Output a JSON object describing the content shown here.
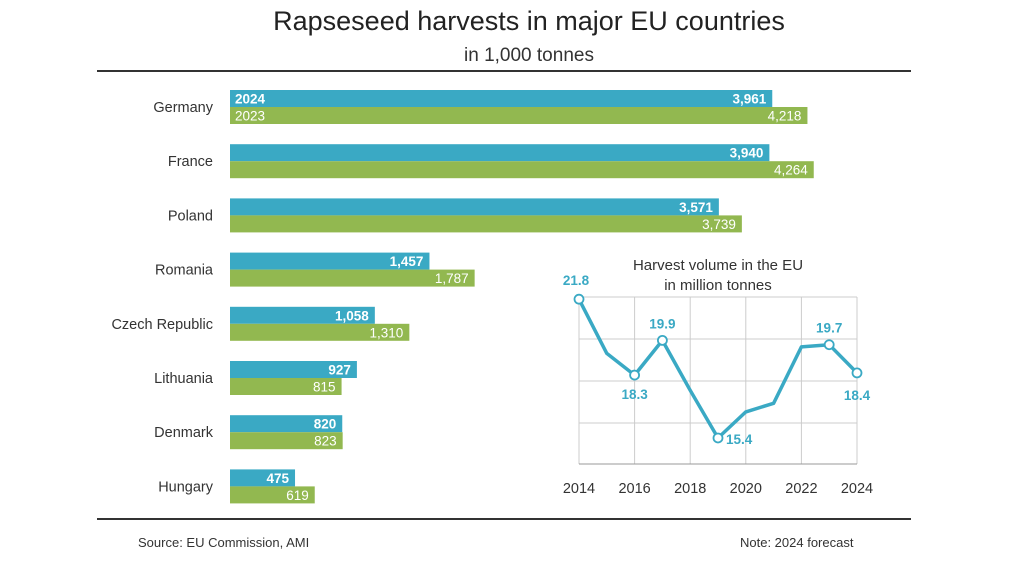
{
  "header": {
    "title": "Rapseseed harvests in major EU countries",
    "subtitle": "in 1,000 tonnes"
  },
  "footer": {
    "source": "Source:  EU Commission, AMI",
    "note": "Note: 2024 forecast"
  },
  "colors": {
    "series_2024": "#3aa9c4",
    "series_2023": "#92b850",
    "line": "#3aa9c4",
    "grid": "#cccccc"
  },
  "chart_data": [
    {
      "type": "bar",
      "orientation": "horizontal",
      "title": "Rapseseed harvests in major EU countries",
      "subtitle": "in 1,000 tonnes",
      "categories": [
        "Germany",
        "France",
        "Poland",
        "Romania",
        "Czech Republic",
        "Lithuania",
        "Denmark",
        "Hungary"
      ],
      "series": [
        {
          "name": "2024",
          "values": [
            3961,
            3940,
            3571,
            1457,
            1058,
            927,
            820,
            475
          ],
          "labels": [
            "3,961",
            "3,940",
            "3,571",
            "1,457",
            "1,058",
            "927",
            "820",
            "475"
          ]
        },
        {
          "name": "2023",
          "values": [
            4218,
            4264,
            3739,
            1787,
            1310,
            815,
            823,
            619
          ],
          "labels": [
            "4,218",
            "4,264",
            "3,739",
            "1,787",
            "1,310",
            "815",
            "823",
            "619"
          ]
        }
      ],
      "xlim": [
        0,
        4500
      ],
      "legend": "inline labels on first bar pair"
    },
    {
      "type": "line",
      "title": "Harvest volume in the EU",
      "subtitle": "in million tonnes",
      "x": [
        2014,
        2015,
        2016,
        2017,
        2018,
        2019,
        2020,
        2021,
        2022,
        2023,
        2024
      ],
      "series": [
        {
          "values": [
            21.8,
            19.3,
            18.3,
            19.9,
            17.6,
            15.4,
            16.6,
            17.0,
            19.6,
            19.7,
            18.4
          ]
        }
      ],
      "labeled_points": [
        {
          "x": 2014,
          "label": "21.8"
        },
        {
          "x": 2016,
          "label": "18.3"
        },
        {
          "x": 2017,
          "label": "19.9"
        },
        {
          "x": 2019,
          "label": "15.4"
        },
        {
          "x": 2023,
          "label": "19.7"
        },
        {
          "x": 2024,
          "label": "18.4"
        }
      ],
      "x_ticks": [
        "2014",
        "2016",
        "2018",
        "2020",
        "2022",
        "2024"
      ],
      "ylim": [
        14.2,
        21.9
      ],
      "grid": true
    }
  ]
}
